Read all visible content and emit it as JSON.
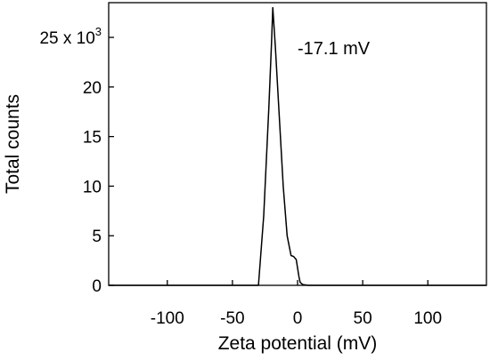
{
  "chart_data": {
    "type": "line",
    "title": "",
    "xlabel": "Zeta potential (mV)",
    "ylabel": "Total counts",
    "xlim": [
      -145,
      145
    ],
    "ylim": [
      0,
      28500
    ],
    "x_ticks": [
      -100,
      -50,
      0,
      50,
      100
    ],
    "x_tick_labels": [
      "-100",
      "-50",
      "0",
      "50",
      "100"
    ],
    "y_ticks": [
      0,
      5000,
      10000,
      15000,
      20000,
      25000
    ],
    "y_tick_labels": [
      "0",
      "5",
      "10",
      "15",
      "20",
      "25 x 10"
    ],
    "y_multiplier_exponent": "3",
    "annotation": "-17.1 mV",
    "grid": false,
    "legend": "none",
    "series": [
      {
        "color": "#000000",
        "x": [
          -145,
          -30,
          -26,
          -22,
          -20,
          -19,
          -17,
          -14,
          -11,
          -8,
          -5,
          -3,
          -1,
          1,
          2,
          4,
          8,
          145
        ],
        "y": [
          0,
          0,
          7000,
          18000,
          24500,
          28000,
          24000,
          17000,
          10000,
          5000,
          3000,
          2900,
          2600,
          900,
          300,
          80,
          0,
          0
        ]
      }
    ]
  }
}
